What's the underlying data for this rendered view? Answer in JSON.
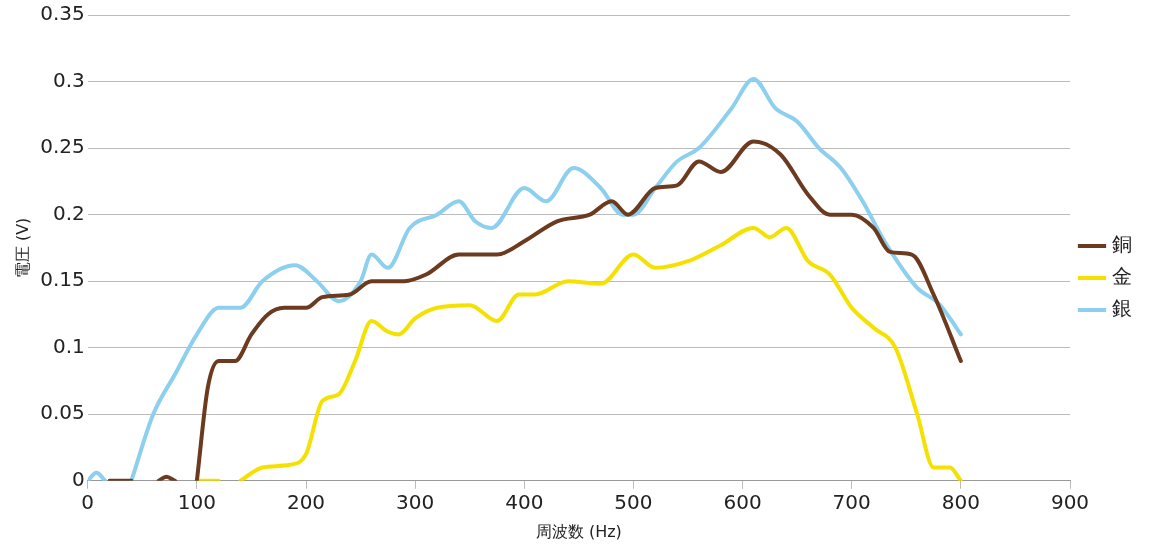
{
  "chart_data": {
    "type": "line",
    "xlabel": "周波数 (Hz)",
    "ylabel": "電圧 (V)",
    "xlim": [
      0,
      900
    ],
    "xticks": [
      0,
      100,
      200,
      300,
      400,
      500,
      600,
      700,
      800,
      900
    ],
    "ylim": [
      0,
      0.35
    ],
    "yticks": [
      0,
      0.05,
      0.1,
      0.15,
      0.2,
      0.25,
      0.3,
      0.35
    ],
    "grid": "y",
    "legend": "right",
    "marker": "none",
    "line_style": "solid",
    "series": [
      {
        "name": "銅",
        "color": "#6b3a1f",
        "x": [
          20,
          40,
          50,
          65,
          72,
          80,
          90,
          100,
          110,
          120,
          135,
          150,
          165,
          180,
          200,
          215,
          240,
          260,
          290,
          310,
          340,
          375,
          400,
          430,
          460,
          480,
          495,
          520,
          540,
          560,
          580,
          610,
          635,
          660,
          680,
          700,
          720,
          735,
          755,
          775,
          800
        ],
        "values": [
          0,
          0,
          null,
          0,
          0.003,
          0,
          null,
          0,
          0.07,
          0.09,
          0.09,
          0.11,
          0.125,
          0.13,
          0.13,
          0.138,
          0.14,
          0.15,
          0.15,
          0.155,
          0.17,
          0.17,
          0.18,
          0.195,
          0.2,
          0.21,
          0.2,
          0.22,
          0.222,
          0.24,
          0.232,
          0.255,
          0.245,
          0.215,
          0.2,
          0.2,
          0.19,
          0.172,
          0.17,
          0.14,
          0.09
        ]
      },
      {
        "name": "金",
        "color": "#f5e100",
        "x": [
          100,
          120,
          130,
          140,
          160,
          185,
          200,
          215,
          230,
          245,
          260,
          275,
          285,
          300,
          320,
          350,
          375,
          395,
          410,
          440,
          470,
          500,
          520,
          550,
          580,
          610,
          625,
          640,
          660,
          680,
          700,
          720,
          740,
          760,
          775,
          790,
          800
        ],
        "values": [
          0,
          0,
          null,
          0,
          0.01,
          0.012,
          0.02,
          0.06,
          0.065,
          0.09,
          0.12,
          0.112,
          0.11,
          0.122,
          0.13,
          0.132,
          0.12,
          0.14,
          0.14,
          0.15,
          0.148,
          0.17,
          0.16,
          0.165,
          0.177,
          0.19,
          0.183,
          0.19,
          0.165,
          0.155,
          0.13,
          0.115,
          0.1,
          0.05,
          0.01,
          0.01,
          0
        ]
      },
      {
        "name": "銀",
        "color": "#8ccfee",
        "x": [
          0,
          8,
          16,
          28,
          40,
          60,
          80,
          100,
          120,
          140,
          160,
          190,
          210,
          230,
          250,
          260,
          275,
          295,
          320,
          340,
          355,
          370,
          400,
          420,
          445,
          470,
          490,
          500,
          520,
          540,
          560,
          590,
          610,
          630,
          650,
          670,
          690,
          710,
          730,
          760,
          780,
          800
        ],
        "values": [
          0,
          0.006,
          0,
          null,
          0,
          0.05,
          0.08,
          0.11,
          0.13,
          0.13,
          0.15,
          0.162,
          0.15,
          0.135,
          0.15,
          0.17,
          0.16,
          0.19,
          0.2,
          0.21,
          0.195,
          0.19,
          0.22,
          0.21,
          0.235,
          0.22,
          0.2,
          0.2,
          0.22,
          0.24,
          0.25,
          0.28,
          0.302,
          0.28,
          0.27,
          0.25,
          0.235,
          0.21,
          0.18,
          0.145,
          0.133,
          0.11
        ]
      }
    ]
  }
}
